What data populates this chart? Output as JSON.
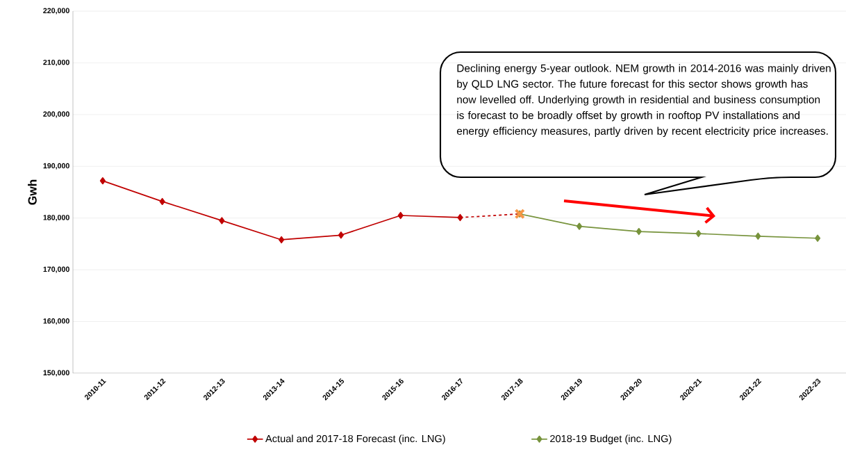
{
  "chart_data": {
    "type": "line",
    "ylabel": "Gwh",
    "categories": [
      "2010-11",
      "2011-12",
      "2012-13",
      "2013-14",
      "2014-15",
      "2015-16",
      "2016-17",
      "2017-18",
      "2018-19",
      "2019-20",
      "2020-21",
      "2021-22",
      "2022-23"
    ],
    "series": [
      {
        "name": "Actual and 2017-18 Forecast  (inc. LNG)",
        "color": "#c00000",
        "marker": "diamond",
        "line_style": "solid",
        "values": [
          187200,
          183200,
          179500,
          175800,
          176700,
          180500,
          180100,
          null,
          null,
          null,
          null,
          null,
          null
        ]
      },
      {
        "color": "#c00000",
        "line_style": "dashed",
        "values": [
          null,
          null,
          null,
          null,
          null,
          null,
          180100,
          180800,
          null,
          null,
          null,
          null,
          null
        ]
      },
      {
        "name": "2018-19 Budget (inc. LNG)",
        "color": "#77933c",
        "marker": "diamond",
        "line_style": "solid",
        "values": [
          null,
          null,
          null,
          null,
          null,
          null,
          null,
          180800,
          178400,
          177400,
          177000,
          176500,
          176100
        ]
      },
      {
        "type": "scatter",
        "color": "#f79646",
        "marker": "cross",
        "values": [
          null,
          null,
          null,
          null,
          null,
          null,
          null,
          180800,
          null,
          null,
          null,
          null,
          null
        ]
      }
    ],
    "ylim": [
      150000,
      220000
    ],
    "yticks": [
      {
        "value": 150000,
        "label": "150,000"
      },
      {
        "value": 160000,
        "label": "160,000"
      },
      {
        "value": 170000,
        "label": "170,000"
      },
      {
        "value": 180000,
        "label": "180,000"
      },
      {
        "value": 190000,
        "label": "190,000"
      },
      {
        "value": 200000,
        "label": "200,000"
      },
      {
        "value": 210000,
        "label": "210,000"
      },
      {
        "value": 220000,
        "label": "220,000"
      }
    ],
    "grid": "y",
    "legend": "bottom",
    "annotations": [
      "Declining energy 5-year outlook. NEM growth in 2014-2016 was mainly driven by QLD LNG sector. The future forecast for this sector shows growth has now levelled off. Underlying growth in residential and business consumption is forecast to be broadly offset by growth in rooftop PV installations and energy efficiency measures, partly driven by recent electricity price increases."
    ]
  }
}
